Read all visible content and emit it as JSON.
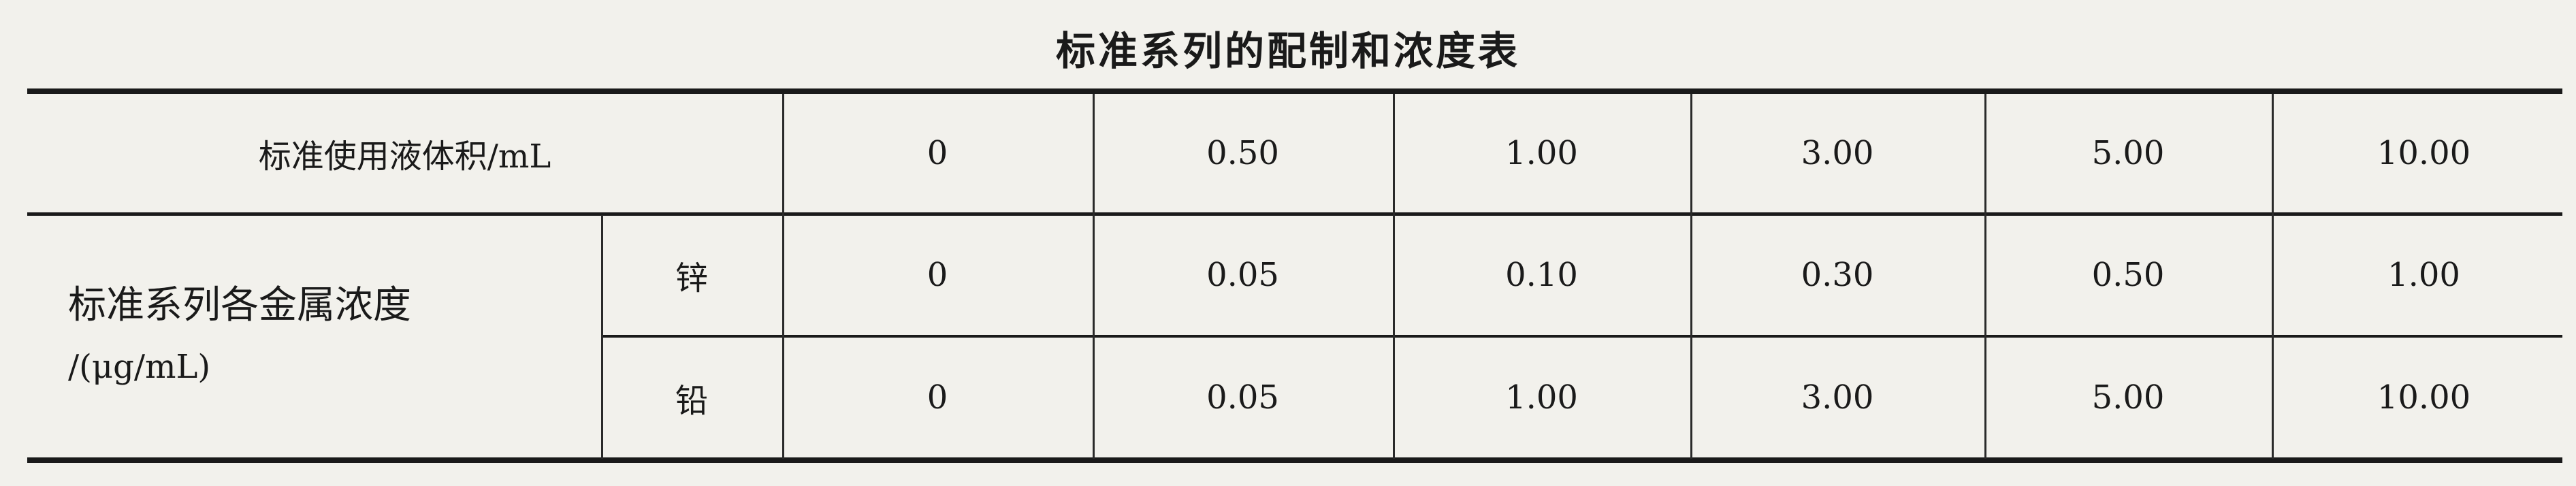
{
  "title": "标准系列的配制和浓度表",
  "rows": {
    "volume": {
      "label": "标准使用液体积/mL",
      "values": [
        "0",
        "0.50",
        "1.00",
        "3.00",
        "5.00",
        "10.00"
      ]
    },
    "concentration_label_line1": "标准系列各金属浓度",
    "concentration_label_line2": "/(μg/mL)",
    "zinc": {
      "label": "锌",
      "values": [
        "0",
        "0.05",
        "0.10",
        "0.30",
        "0.50",
        "1.00"
      ]
    },
    "lead": {
      "label": "铅",
      "values": [
        "0",
        "0.05",
        "1.00",
        "3.00",
        "5.00",
        "10.00"
      ]
    }
  }
}
